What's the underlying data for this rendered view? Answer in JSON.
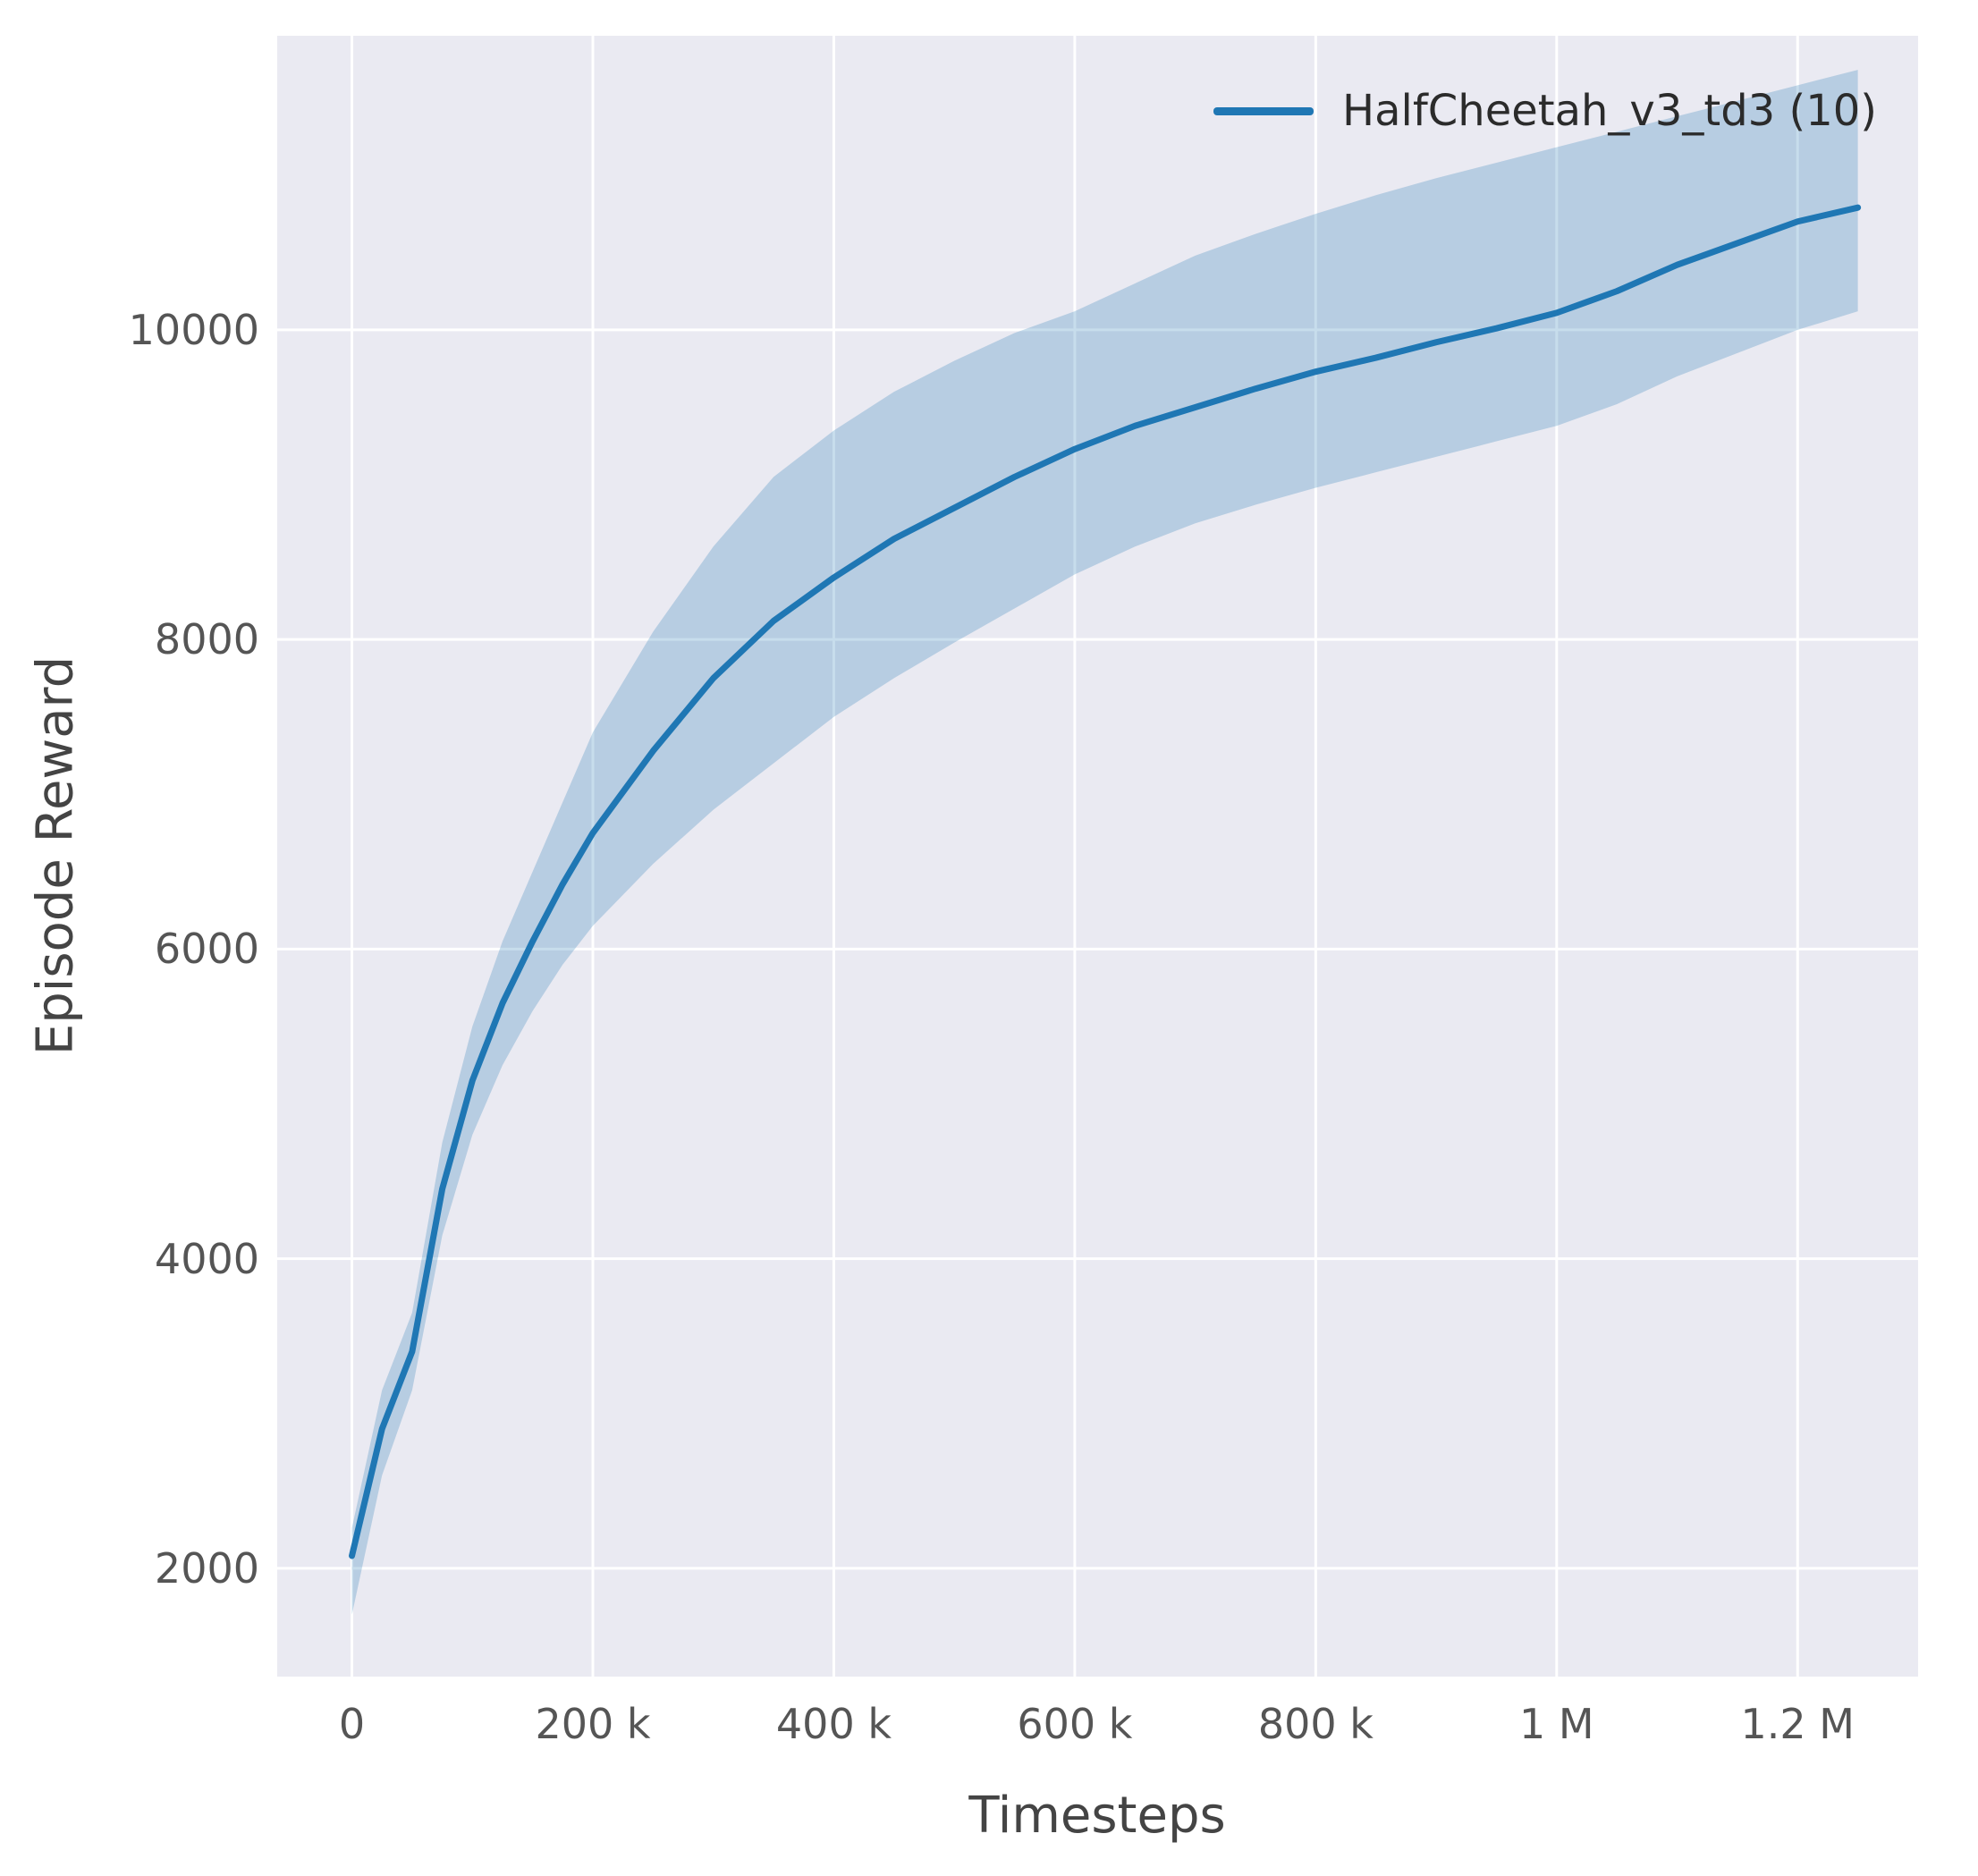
{
  "figure": {
    "background": "#ffffff",
    "plot_background": "#eaeaf2",
    "grid_color": "#ffffff",
    "tick_color": "#555555",
    "label_color": "#444444"
  },
  "chart_data": {
    "type": "line",
    "title": "",
    "xlabel": "Timesteps",
    "ylabel": "Episode Reward",
    "grid": true,
    "legend_position": "upper right",
    "xlim": [
      -62000,
      1300000
    ],
    "ylim": [
      1300,
      11900
    ],
    "xticks": [
      {
        "value": 0,
        "label": "0"
      },
      {
        "value": 200000,
        "label": "200 k"
      },
      {
        "value": 400000,
        "label": "400 k"
      },
      {
        "value": 600000,
        "label": "600 k"
      },
      {
        "value": 800000,
        "label": "800 k"
      },
      {
        "value": 1000000,
        "label": "1 M"
      },
      {
        "value": 1200000,
        "label": "1.2 M"
      }
    ],
    "yticks": [
      {
        "value": 2000,
        "label": "2000"
      },
      {
        "value": 4000,
        "label": "4000"
      },
      {
        "value": 6000,
        "label": "6000"
      },
      {
        "value": 8000,
        "label": "8000"
      },
      {
        "value": 10000,
        "label": "10000"
      }
    ],
    "series": [
      {
        "name": "HalfCheetah_v3_td3 (10)",
        "color": "#1f77b4",
        "band_alpha": 0.25,
        "line_width": 7,
        "x": [
          0,
          25000,
          50000,
          75000,
          100000,
          125000,
          150000,
          175000,
          200000,
          250000,
          300000,
          350000,
          400000,
          450000,
          500000,
          550000,
          600000,
          650000,
          700000,
          750000,
          800000,
          850000,
          900000,
          950000,
          1000000,
          1050000,
          1100000,
          1150000,
          1200000,
          1250000
        ],
        "mean": [
          2080,
          2900,
          3400,
          4450,
          5150,
          5650,
          6050,
          6420,
          6750,
          7280,
          7750,
          8120,
          8400,
          8650,
          8850,
          9050,
          9230,
          9380,
          9500,
          9620,
          9730,
          9820,
          9920,
          10010,
          10110,
          10250,
          10420,
          10560,
          10700,
          10790
        ],
        "lower": [
          1700,
          2600,
          3150,
          4150,
          4800,
          5250,
          5600,
          5900,
          6150,
          6550,
          6900,
          7200,
          7500,
          7750,
          7980,
          8200,
          8420,
          8600,
          8750,
          8870,
          8980,
          9080,
          9180,
          9280,
          9380,
          9520,
          9700,
          9850,
          10000,
          10120
        ],
        "upper": [
          2260,
          3150,
          3650,
          4750,
          5500,
          6050,
          6500,
          6950,
          7400,
          8050,
          8600,
          9050,
          9350,
          9600,
          9800,
          9980,
          10120,
          10300,
          10480,
          10620,
          10750,
          10870,
          10980,
          11080,
          11180,
          11280,
          11380,
          11480,
          11580,
          11680
        ]
      }
    ]
  }
}
